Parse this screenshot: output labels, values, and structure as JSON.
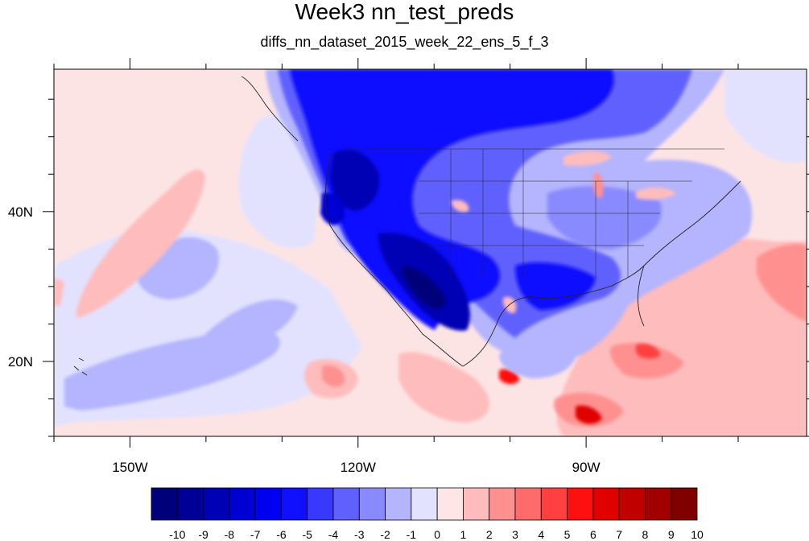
{
  "title": "Week3 nn_test_preds",
  "subtitle": "diffs_nn_dataset_2015_week_22_ens_5_f_3",
  "map": {
    "lon_range": [
      -160,
      -61
    ],
    "lat_range": [
      10,
      59
    ],
    "x_ticks": [
      {
        "value": -150,
        "label": "150W"
      },
      {
        "value": -120,
        "label": "120W"
      },
      {
        "value": -90,
        "label": "90W"
      }
    ],
    "y_ticks": [
      {
        "value": 40,
        "label": "40N"
      },
      {
        "value": 20,
        "label": "20N"
      }
    ]
  },
  "colorbar": {
    "labels": [
      "-10",
      "-9",
      "-8",
      "-7",
      "-6",
      "-5",
      "-4",
      "-3",
      "-2",
      "-1",
      "0",
      "1",
      "2",
      "3",
      "4",
      "5",
      "6",
      "7",
      "8",
      "9",
      "10"
    ],
    "colors": [
      "#00007a",
      "#000096",
      "#0000b4",
      "#0000d2",
      "#0000f0",
      "#1010ff",
      "#3838ff",
      "#6060ff",
      "#8a8aff",
      "#b4b4ff",
      "#e2e2ff",
      "#ffe6e6",
      "#ffbcbc",
      "#ff9090",
      "#ff6a6a",
      "#ff4040",
      "#ff1010",
      "#e00000",
      "#c00000",
      "#a00000",
      "#800000"
    ]
  },
  "fields": {
    "background_color": "#fde4e4"
  }
}
